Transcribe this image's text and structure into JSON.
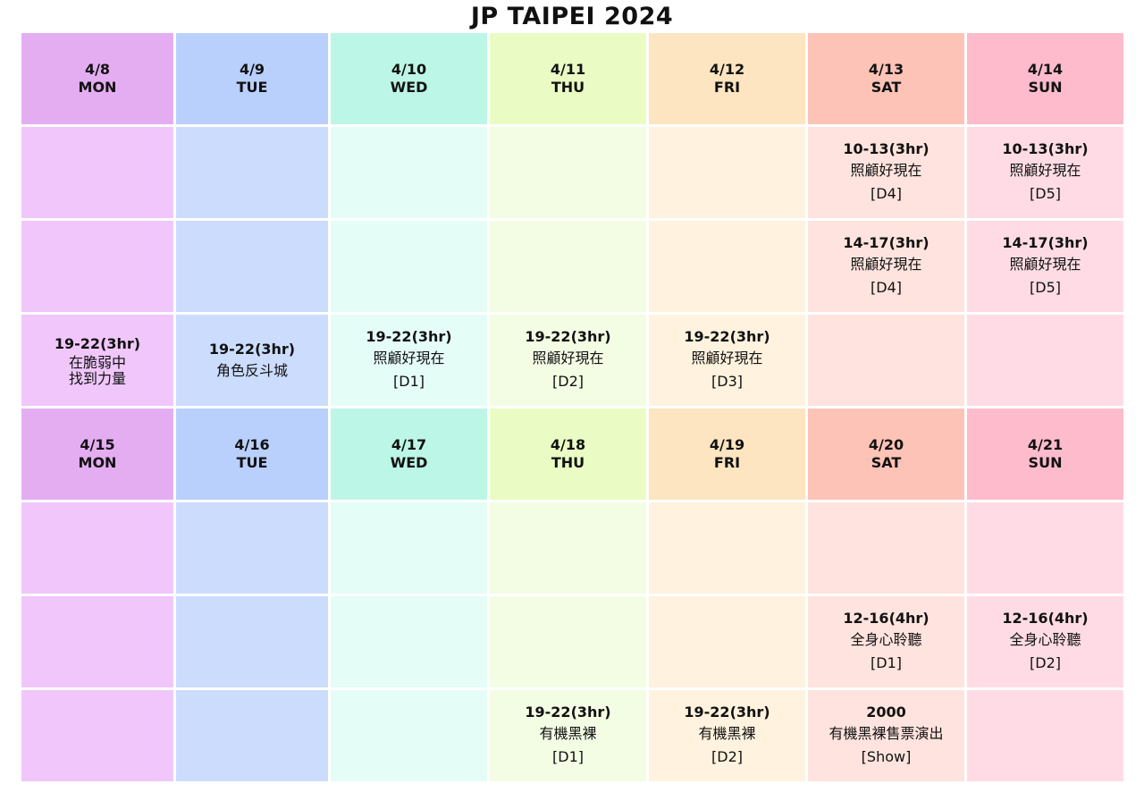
{
  "title": "JP TAIPEI 2024",
  "weeks": [
    {
      "days": [
        {
          "date": "4/8",
          "dow": "MON"
        },
        {
          "date": "4/9",
          "dow": "TUE"
        },
        {
          "date": "4/10",
          "dow": "WED"
        },
        {
          "date": "4/11",
          "dow": "THU"
        },
        {
          "date": "4/12",
          "dow": "FRI"
        },
        {
          "date": "4/13",
          "dow": "SAT"
        },
        {
          "date": "4/14",
          "dow": "SUN"
        }
      ],
      "slots": [
        [
          null,
          null,
          null,
          null,
          null,
          {
            "time": "10-13(3hr)",
            "name": "照顧好現在",
            "tag": "[D4]"
          },
          {
            "time": "10-13(3hr)",
            "name": "照顧好現在",
            "tag": "[D5]"
          }
        ],
        [
          null,
          null,
          null,
          null,
          null,
          {
            "time": "14-17(3hr)",
            "name": "照顧好現在",
            "tag": "[D4]"
          },
          {
            "time": "14-17(3hr)",
            "name": "照顧好現在",
            "tag": "[D5]"
          }
        ],
        [
          {
            "time": "19-22(3hr)",
            "name": "在脆弱中",
            "name2": "找到力量"
          },
          {
            "time": "19-22(3hr)",
            "name": "角色反斗城"
          },
          {
            "time": "19-22(3hr)",
            "name": "照顧好現在",
            "tag": "[D1]"
          },
          {
            "time": "19-22(3hr)",
            "name": "照顧好現在",
            "tag": "[D2]"
          },
          {
            "time": "19-22(3hr)",
            "name": "照顧好現在",
            "tag": "[D3]"
          },
          null,
          null
        ]
      ]
    },
    {
      "days": [
        {
          "date": "4/15",
          "dow": "MON"
        },
        {
          "date": "4/16",
          "dow": "TUE"
        },
        {
          "date": "4/17",
          "dow": "WED"
        },
        {
          "date": "4/18",
          "dow": "THU"
        },
        {
          "date": "4/19",
          "dow": "FRI"
        },
        {
          "date": "4/20",
          "dow": "SAT"
        },
        {
          "date": "4/21",
          "dow": "SUN"
        }
      ],
      "slots": [
        [
          null,
          null,
          null,
          null,
          null,
          null,
          null
        ],
        [
          null,
          null,
          null,
          null,
          null,
          {
            "time": "12-16(4hr)",
            "name": "全身心聆聽",
            "tag": "[D1]"
          },
          {
            "time": "12-16(4hr)",
            "name": "全身心聆聽",
            "tag": "[D2]"
          }
        ],
        [
          null,
          null,
          null,
          {
            "time": "19-22(3hr)",
            "name": "有機黑裸",
            "tag": "[D1]"
          },
          {
            "time": "19-22(3hr)",
            "name": "有機黑裸",
            "tag": "[D2]"
          },
          {
            "time": "2000",
            "name": "有機黑裸售票演出",
            "tag": "[Show]"
          },
          null
        ]
      ]
    }
  ]
}
